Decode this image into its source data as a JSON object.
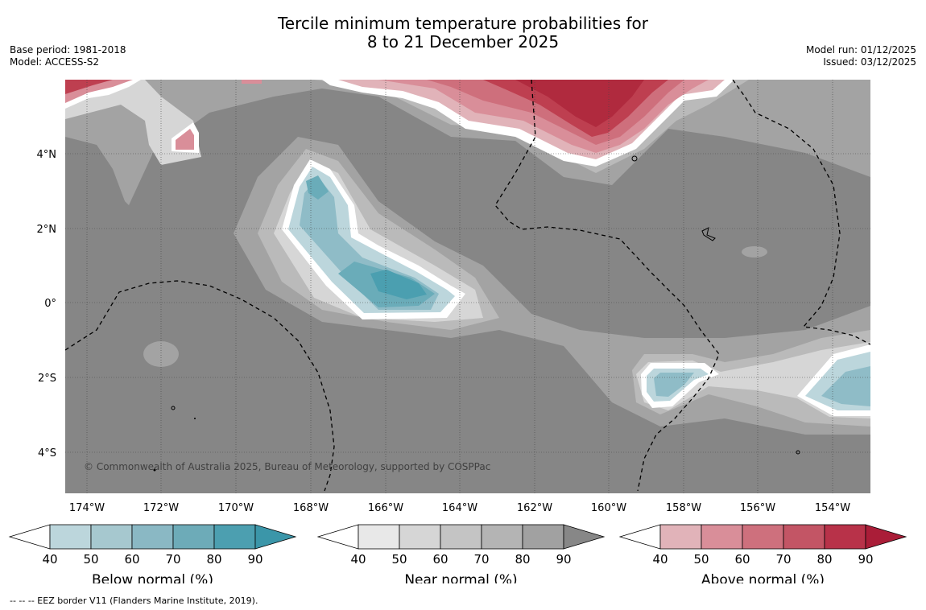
{
  "title": {
    "line1": "Tercile minimum temperature probabilities for",
    "line2": "8 to 21 December 2025"
  },
  "meta": {
    "base_period": "Base period: 1981-2018",
    "model": "Model: ACCESS-S2",
    "model_run": "Model run: 01/12/2025",
    "issued": "Issued: 03/12/2025"
  },
  "map": {
    "copyright": "© Commonwealth of Australia 2025, Bureau of Meteorology, supported by COSPPac",
    "lat_labels": [
      "4°N",
      "2°N",
      "0°",
      "2°S",
      "4°S"
    ],
    "lon_labels": [
      "174°W",
      "172°W",
      "170°W",
      "168°W",
      "166°W",
      "164°W",
      "162°W",
      "160°W",
      "158°W",
      "156°W",
      "154°W"
    ],
    "colors": {
      "background": "#868686",
      "near_light": "#d6d6d6",
      "near_mid": "#bababa",
      "near_dark": "#a3a3a3",
      "blue_1": "#bcd6dc",
      "blue_2": "#8fbcc7",
      "blue_3": "#6aacb9",
      "blue_4": "#4b9fb0",
      "red_1": "#e1b3b9",
      "red_2": "#d98e99",
      "red_3": "#ce6f7c",
      "red_4": "#be3f50",
      "red_5": "#b02a3e"
    }
  },
  "legends": [
    {
      "label": "Below normal (%)",
      "ticks": [
        "40",
        "50",
        "60",
        "70",
        "80",
        "90"
      ],
      "colors": [
        "#bcd6dc",
        "#a6c8cf",
        "#8ab8c4",
        "#6dabb8",
        "#4c9fb0",
        "#3b96a9"
      ]
    },
    {
      "label": "Near normal (%)",
      "ticks": [
        "40",
        "50",
        "60",
        "70",
        "80",
        "90"
      ],
      "colors": [
        "#e8e8e8",
        "#d6d6d6",
        "#c4c4c4",
        "#b4b4b4",
        "#a1a1a1",
        "#878787"
      ]
    },
    {
      "label": "Above normal (%)",
      "ticks": [
        "40",
        "50",
        "60",
        "70",
        "80",
        "90"
      ],
      "colors": [
        "#e1b3b9",
        "#d98e99",
        "#ce707d",
        "#c35565",
        "#b83249",
        "#aa1d38"
      ]
    }
  ],
  "footer": "--  --  -- EEZ border V11 (Flanders Marine Institute, 2019)."
}
